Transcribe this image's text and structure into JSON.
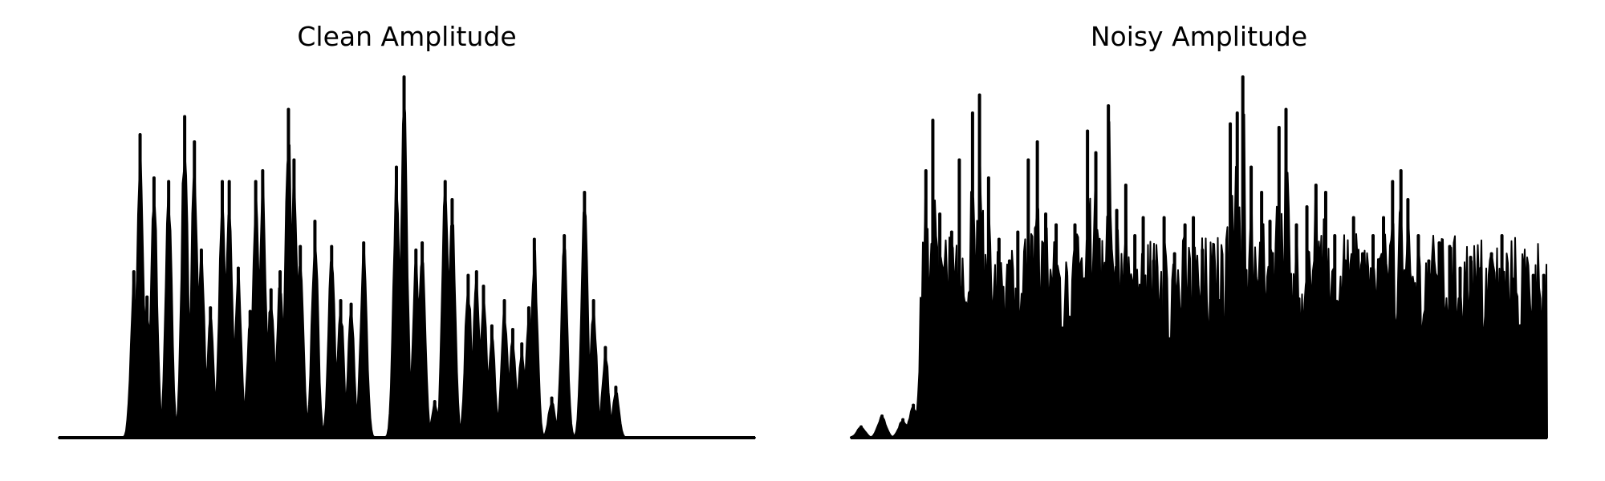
{
  "chart_data": [
    {
      "type": "line",
      "title": "Clean Amplitude",
      "xlabel": "",
      "ylabel": "",
      "axes": "off",
      "grid": false,
      "xlim": [
        0,
        1
      ],
      "ylim": [
        0,
        1
      ],
      "color": "#000000",
      "peaks": [
        {
          "x": 0.108,
          "h": 0.46
        },
        {
          "x": 0.117,
          "h": 0.84
        },
        {
          "x": 0.127,
          "h": 0.39
        },
        {
          "x": 0.137,
          "h": 0.72
        },
        {
          "x": 0.158,
          "h": 0.71
        },
        {
          "x": 0.181,
          "h": 0.89
        },
        {
          "x": 0.195,
          "h": 0.82
        },
        {
          "x": 0.205,
          "h": 0.52
        },
        {
          "x": 0.218,
          "h": 0.36
        },
        {
          "x": 0.235,
          "h": 0.71
        },
        {
          "x": 0.245,
          "h": 0.71
        },
        {
          "x": 0.258,
          "h": 0.47
        },
        {
          "x": 0.275,
          "h": 0.35
        },
        {
          "x": 0.283,
          "h": 0.71
        },
        {
          "x": 0.293,
          "h": 0.74
        },
        {
          "x": 0.305,
          "h": 0.41
        },
        {
          "x": 0.318,
          "h": 0.46
        },
        {
          "x": 0.33,
          "h": 0.91
        },
        {
          "x": 0.338,
          "h": 0.77
        },
        {
          "x": 0.347,
          "h": 0.53
        },
        {
          "x": 0.368,
          "h": 0.6
        },
        {
          "x": 0.392,
          "h": 0.53
        },
        {
          "x": 0.405,
          "h": 0.38
        },
        {
          "x": 0.42,
          "h": 0.37
        },
        {
          "x": 0.438,
          "h": 0.54
        },
        {
          "x": 0.485,
          "h": 0.75
        },
        {
          "x": 0.496,
          "h": 1.0
        },
        {
          "x": 0.513,
          "h": 0.52
        },
        {
          "x": 0.522,
          "h": 0.54
        },
        {
          "x": 0.54,
          "h": 0.1
        },
        {
          "x": 0.555,
          "h": 0.71
        },
        {
          "x": 0.565,
          "h": 0.66
        },
        {
          "x": 0.588,
          "h": 0.45
        },
        {
          "x": 0.6,
          "h": 0.46
        },
        {
          "x": 0.61,
          "h": 0.42
        },
        {
          "x": 0.622,
          "h": 0.31
        },
        {
          "x": 0.64,
          "h": 0.38
        },
        {
          "x": 0.652,
          "h": 0.3
        },
        {
          "x": 0.665,
          "h": 0.26
        },
        {
          "x": 0.675,
          "h": 0.36
        },
        {
          "x": 0.683,
          "h": 0.55
        },
        {
          "x": 0.708,
          "h": 0.11
        },
        {
          "x": 0.726,
          "h": 0.56
        },
        {
          "x": 0.755,
          "h": 0.68
        },
        {
          "x": 0.768,
          "h": 0.38
        },
        {
          "x": 0.785,
          "h": 0.25
        },
        {
          "x": 0.8,
          "h": 0.14
        }
      ]
    },
    {
      "type": "line",
      "title": "Noisy Amplitude",
      "xlabel": "",
      "ylabel": "",
      "axes": "off",
      "grid": false,
      "xlim": [
        0,
        1
      ],
      "ylim": [
        0,
        1
      ],
      "color": "#000000",
      "peaks": [
        {
          "x": 0.015,
          "h": 0.03
        },
        {
          "x": 0.045,
          "h": 0.06
        },
        {
          "x": 0.075,
          "h": 0.05
        },
        {
          "x": 0.09,
          "h": 0.09
        },
        {
          "x": 0.108,
          "h": 0.74
        },
        {
          "x": 0.118,
          "h": 0.88
        },
        {
          "x": 0.128,
          "h": 0.62
        },
        {
          "x": 0.145,
          "h": 0.57
        },
        {
          "x": 0.156,
          "h": 0.77
        },
        {
          "x": 0.175,
          "h": 0.9
        },
        {
          "x": 0.185,
          "h": 0.95
        },
        {
          "x": 0.198,
          "h": 0.72
        },
        {
          "x": 0.213,
          "h": 0.55
        },
        {
          "x": 0.228,
          "h": 0.49
        },
        {
          "x": 0.24,
          "h": 0.57
        },
        {
          "x": 0.255,
          "h": 0.77
        },
        {
          "x": 0.268,
          "h": 0.82
        },
        {
          "x": 0.28,
          "h": 0.62
        },
        {
          "x": 0.295,
          "h": 0.59
        },
        {
          "x": 0.31,
          "h": 0.45
        },
        {
          "x": 0.322,
          "h": 0.59
        },
        {
          "x": 0.34,
          "h": 0.85
        },
        {
          "x": 0.352,
          "h": 0.79
        },
        {
          "x": 0.37,
          "h": 0.92
        },
        {
          "x": 0.382,
          "h": 0.63
        },
        {
          "x": 0.395,
          "h": 0.7
        },
        {
          "x": 0.408,
          "h": 0.56
        },
        {
          "x": 0.42,
          "h": 0.61
        },
        {
          "x": 0.435,
          "h": 0.49
        },
        {
          "x": 0.45,
          "h": 0.61
        },
        {
          "x": 0.465,
          "h": 0.51
        },
        {
          "x": 0.48,
          "h": 0.59
        },
        {
          "x": 0.492,
          "h": 0.61
        },
        {
          "x": 0.505,
          "h": 0.52
        },
        {
          "x": 0.518,
          "h": 0.42
        },
        {
          "x": 0.53,
          "h": 0.38
        },
        {
          "x": 0.545,
          "h": 0.87
        },
        {
          "x": 0.555,
          "h": 0.9
        },
        {
          "x": 0.563,
          "h": 1.0
        },
        {
          "x": 0.575,
          "h": 0.75
        },
        {
          "x": 0.59,
          "h": 0.68
        },
        {
          "x": 0.602,
          "h": 0.6
        },
        {
          "x": 0.615,
          "h": 0.86
        },
        {
          "x": 0.625,
          "h": 0.91
        },
        {
          "x": 0.64,
          "h": 0.59
        },
        {
          "x": 0.655,
          "h": 0.64
        },
        {
          "x": 0.668,
          "h": 0.7
        },
        {
          "x": 0.682,
          "h": 0.68
        },
        {
          "x": 0.695,
          "h": 0.56
        },
        {
          "x": 0.71,
          "h": 0.49
        },
        {
          "x": 0.722,
          "h": 0.61
        },
        {
          "x": 0.735,
          "h": 0.51
        },
        {
          "x": 0.75,
          "h": 0.56
        },
        {
          "x": 0.765,
          "h": 0.61
        },
        {
          "x": 0.778,
          "h": 0.71
        },
        {
          "x": 0.79,
          "h": 0.74
        },
        {
          "x": 0.8,
          "h": 0.66
        },
        {
          "x": 0.815,
          "h": 0.56
        },
        {
          "x": 0.83,
          "h": 0.49
        },
        {
          "x": 0.845,
          "h": 0.54
        },
        {
          "x": 0.86,
          "h": 0.53
        },
        {
          "x": 0.875,
          "h": 0.47
        },
        {
          "x": 0.89,
          "h": 0.5
        },
        {
          "x": 0.905,
          "h": 0.47
        },
        {
          "x": 0.92,
          "h": 0.51
        },
        {
          "x": 0.935,
          "h": 0.56
        },
        {
          "x": 0.95,
          "h": 0.44
        },
        {
          "x": 0.965,
          "h": 0.44
        },
        {
          "x": 0.98,
          "h": 0.45
        },
        {
          "x": 0.995,
          "h": 0.45
        }
      ]
    }
  ]
}
